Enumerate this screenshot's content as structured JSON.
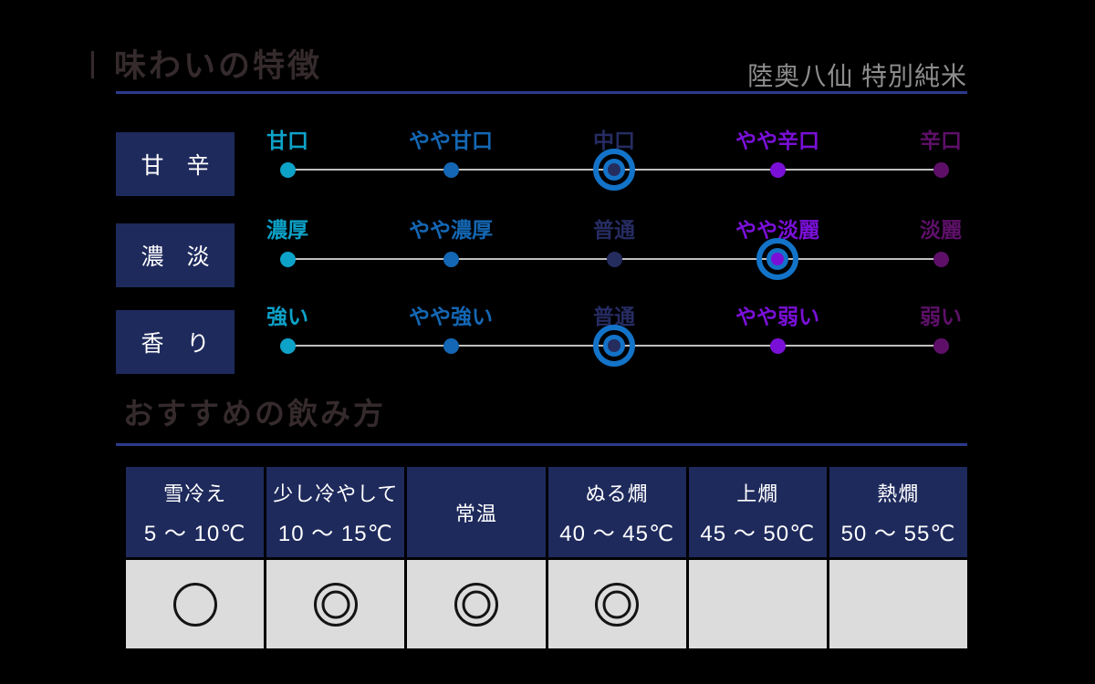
{
  "header": {
    "title": "味わいの特徴",
    "product": "陸奥八仙 特別純米"
  },
  "serving_header": {
    "title": "おすすめの飲み方"
  },
  "colors": {
    "background": "#000000",
    "title_text": "#352a2c",
    "product_text": "#8e8e8e",
    "rule": "#2b3a8c",
    "label_box_bg": "#1e2a5c",
    "label_box_text": "#ffffff",
    "track_line": "#c0c0c0",
    "selected_ring_blue": "#1373c8",
    "scale_step_colors": [
      "#0da2c8",
      "#1467b4",
      "#262c62",
      "#7a10d8",
      "#5e1069"
    ],
    "table_header_bg": "#1e2a5c",
    "table_body_bg": "#dcdcdc",
    "rating_circle": "#141414"
  },
  "scales": [
    {
      "name": "甘　辛",
      "selected": "中口",
      "selected_index": 2,
      "points": [
        {
          "label": "甘口"
        },
        {
          "label": "やや甘口"
        },
        {
          "label": "中口"
        },
        {
          "label": "やや辛口"
        },
        {
          "label": "辛口"
        }
      ]
    },
    {
      "name": "濃　淡",
      "selected": "やや淡麗",
      "selected_index": 3,
      "points": [
        {
          "label": "濃厚"
        },
        {
          "label": "やや濃厚"
        },
        {
          "label": "普通"
        },
        {
          "label": "やや淡麗"
        },
        {
          "label": "淡麗"
        }
      ]
    },
    {
      "name": "香　り",
      "selected": "普通",
      "selected_index": 2,
      "points": [
        {
          "label": "強い"
        },
        {
          "label": "やや強い"
        },
        {
          "label": "普通"
        },
        {
          "label": "やや弱い"
        },
        {
          "label": "弱い"
        }
      ]
    }
  ],
  "serving": {
    "columns": [
      {
        "name": "雪冷え",
        "temp": "5 ～ 10℃",
        "rating": "○"
      },
      {
        "name": "少し冷やして",
        "temp": "10 ～ 15℃",
        "rating": "◎"
      },
      {
        "name": "常温",
        "temp": "",
        "rating": "◎"
      },
      {
        "name": "ぬる燗",
        "temp": "40 ～ 45℃",
        "rating": "◎"
      },
      {
        "name": "上燗",
        "temp": "45 ～ 50℃",
        "rating": ""
      },
      {
        "name": "熱燗",
        "temp": "50 ～ 55℃",
        "rating": ""
      }
    ]
  },
  "chart_data": [
    {
      "type": "scatter",
      "title": "甘辛",
      "categories": [
        "甘口",
        "やや甘口",
        "中口",
        "やや辛口",
        "辛口"
      ],
      "selected": "中口",
      "selected_index": 2,
      "legend_position": "none",
      "grid": false
    },
    {
      "type": "scatter",
      "title": "濃淡",
      "categories": [
        "濃厚",
        "やや濃厚",
        "普通",
        "やや淡麗",
        "淡麗"
      ],
      "selected": "やや淡麗",
      "selected_index": 3,
      "legend_position": "none",
      "grid": false
    },
    {
      "type": "scatter",
      "title": "香り",
      "categories": [
        "強い",
        "やや強い",
        "普通",
        "やや弱い",
        "弱い"
      ],
      "selected": "普通",
      "selected_index": 2,
      "legend_position": "none",
      "grid": false
    },
    {
      "type": "table",
      "title": "おすすめの飲み方",
      "categories": [
        "雪冷え 5～10℃",
        "少し冷やして 10～15℃",
        "常温",
        "ぬる燗 40～45℃",
        "上燗 45～50℃",
        "熱燗 50～55℃"
      ],
      "values": [
        "○",
        "◎",
        "◎",
        "◎",
        "",
        ""
      ]
    }
  ]
}
